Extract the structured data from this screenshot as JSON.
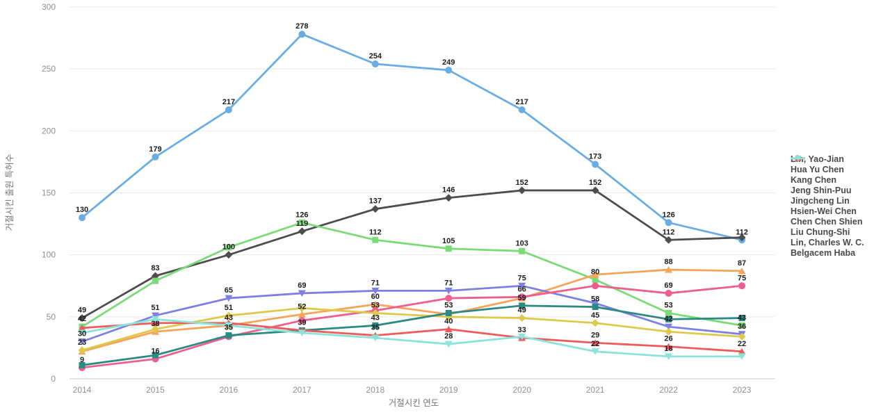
{
  "chart_data": {
    "type": "line",
    "title": "",
    "xlabel": "거절시킨 연도",
    "ylabel": "거절시킨 출원 특허수",
    "categories": [
      "2014",
      "2015",
      "2016",
      "2017",
      "2018",
      "2019",
      "2020",
      "2021",
      "2022",
      "2023"
    ],
    "ylim": [
      0,
      300
    ],
    "yticks": [
      0,
      50,
      100,
      150,
      200,
      250,
      300
    ],
    "grid": "horizontal-only",
    "legend_position": "right",
    "series": [
      {
        "name": "Lin, Yao-Jian",
        "color": "#6aade4",
        "marker": "circle",
        "values": [
          130,
          179,
          217,
          278,
          254,
          249,
          217,
          173,
          126,
          112
        ],
        "labeled": [
          true,
          true,
          true,
          true,
          true,
          true,
          true,
          true,
          true,
          true
        ]
      },
      {
        "name": "Hua Yu Chen",
        "color": "#4d4d4d",
        "marker": "diamond",
        "values": [
          49,
          83,
          100,
          119,
          137,
          146,
          152,
          152,
          112,
          114
        ],
        "labeled": [
          true,
          true,
          true,
          true,
          true,
          true,
          true,
          true,
          true,
          false
        ]
      },
      {
        "name": "Kang Chen",
        "color": "#7bdb76",
        "marker": "square",
        "values": [
          42,
          79,
          106,
          126,
          112,
          105,
          103,
          80,
          53,
          43
        ],
        "labeled": [
          true,
          false,
          false,
          true,
          true,
          true,
          true,
          true,
          true,
          true
        ]
      },
      {
        "name": "Jeng Shin-Puu",
        "color": "#f5a45a",
        "marker": "triangle-up",
        "values": [
          22,
          38,
          43,
          52,
          60,
          52,
          65,
          84,
          88,
          87
        ],
        "labeled": [
          false,
          true,
          true,
          true,
          true,
          false,
          false,
          false,
          true,
          true
        ]
      },
      {
        "name": "Jingcheng Lin",
        "color": "#7d80e2",
        "marker": "triangle-down",
        "values": [
          30,
          51,
          65,
          69,
          71,
          71,
          75,
          61,
          42,
          36
        ],
        "labeled": [
          true,
          true,
          true,
          true,
          true,
          true,
          true,
          false,
          true,
          true
        ]
      },
      {
        "name": "Hsien-Wei Chen",
        "color": "#ee5f8e",
        "marker": "circle",
        "values": [
          9,
          16,
          34,
          47,
          55,
          65,
          66,
          75,
          69,
          75
        ],
        "labeled": [
          true,
          true,
          false,
          false,
          false,
          false,
          true,
          false,
          true,
          true
        ]
      },
      {
        "name": "Chen Chen Shien",
        "color": "#ddca4a",
        "marker": "diamond",
        "values": [
          23,
          40,
          51,
          57,
          53,
          50,
          49,
          45,
          38,
          34
        ],
        "labeled": [
          true,
          false,
          true,
          false,
          true,
          false,
          true,
          true,
          false,
          false
        ]
      },
      {
        "name": "Liu Chung-Shi",
        "color": "#2b8a84",
        "marker": "square",
        "values": [
          11,
          19,
          35,
          39,
          43,
          53,
          59,
          58,
          48,
          49
        ],
        "labeled": [
          false,
          false,
          true,
          false,
          true,
          true,
          true,
          true,
          false,
          false
        ]
      },
      {
        "name": "Lin, Charles W. C.",
        "color": "#ef5a5a",
        "marker": "triangle-up",
        "values": [
          41,
          45,
          45,
          39,
          35,
          40,
          33,
          29,
          26,
          22
        ],
        "labeled": [
          false,
          false,
          false,
          true,
          true,
          true,
          true,
          true,
          true,
          true
        ]
      },
      {
        "name": "Belgacem Haba",
        "color": "#8ae4da",
        "marker": "triangle-down",
        "values": [
          37,
          48,
          43,
          37,
          33,
          28,
          34,
          22,
          18,
          18
        ],
        "labeled": [
          false,
          false,
          false,
          false,
          false,
          true,
          false,
          true,
          true,
          false
        ]
      }
    ]
  },
  "colors": {
    "background": "#ffffff",
    "grid": "#e9e9e9",
    "axis_line": "#cccccc",
    "tick_label": "#8f8f8f",
    "axis_title": "#757575",
    "data_label": "#1c1c1c",
    "legend_text": "#4a4a4a"
  }
}
